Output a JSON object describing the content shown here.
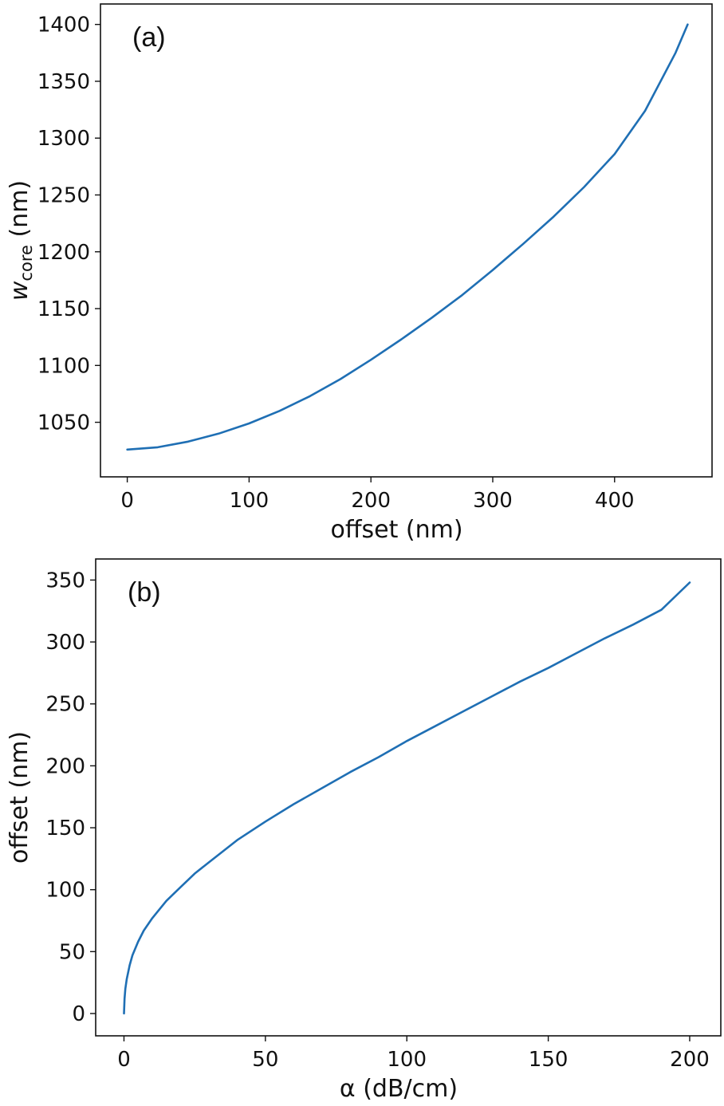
{
  "chart_data": [
    {
      "type": "line",
      "panel_label": "(a)",
      "xlabel": "offset (nm)",
      "ylabel_main": "w",
      "ylabel_sub": "core",
      "ylabel_unit": "(nm)",
      "xlim": [
        -22,
        480
      ],
      "ylim": [
        1002,
        1418
      ],
      "xticks": [
        0,
        100,
        200,
        300,
        400
      ],
      "yticks": [
        1050,
        1100,
        1150,
        1200,
        1250,
        1300,
        1350,
        1400
      ],
      "grid": false,
      "series": [
        {
          "color": "#1f6fb4",
          "x": [
            0,
            25,
            50,
            75,
            100,
            125,
            150,
            175,
            200,
            225,
            250,
            275,
            300,
            325,
            350,
            375,
            400,
            425,
            450,
            460
          ],
          "y": [
            1026,
            1028,
            1033,
            1040,
            1049,
            1060,
            1073,
            1088,
            1105,
            1123,
            1142,
            1162,
            1184,
            1207,
            1231,
            1257,
            1286,
            1324,
            1375,
            1400
          ]
        }
      ]
    },
    {
      "type": "line",
      "panel_label": "(b)",
      "xlabel": "α (dB/cm)",
      "ylabel": "offset (nm)",
      "xlim": [
        -10,
        211
      ],
      "ylim": [
        -18,
        367
      ],
      "xticks": [
        0,
        50,
        100,
        150,
        200
      ],
      "yticks": [
        0,
        50,
        100,
        150,
        200,
        250,
        300,
        350
      ],
      "grid": false,
      "series": [
        {
          "color": "#1f6fb4",
          "x": [
            0,
            0.2,
            0.5,
            1,
            2,
            3,
            5,
            7,
            10,
            15,
            20,
            25,
            30,
            40,
            50,
            60,
            70,
            80,
            90,
            100,
            110,
            120,
            130,
            140,
            150,
            160,
            170,
            180,
            190,
            200
          ],
          "y": [
            0,
            12,
            20,
            28,
            39,
            47,
            58,
            67,
            77,
            91,
            102,
            113,
            122,
            140,
            155,
            169,
            182,
            195,
            207,
            220,
            232,
            244,
            256,
            268,
            279,
            291,
            303,
            314,
            326,
            348
          ]
        }
      ]
    }
  ]
}
